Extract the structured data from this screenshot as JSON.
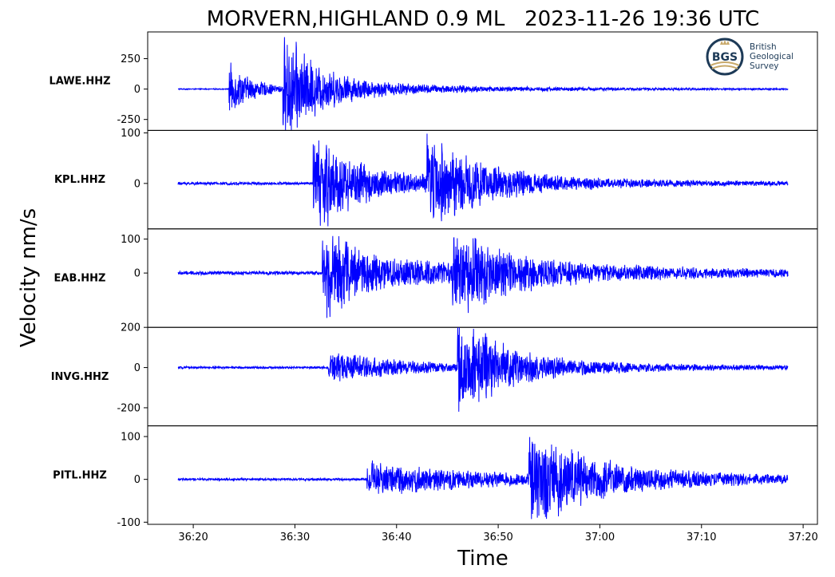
{
  "chart_data": {
    "type": "line",
    "title": "MORVERN,HIGHLAND 0.9 ML   2023-11-26 19:36 UTC",
    "xlabel": "Time",
    "ylabel": "Velocity nm/s",
    "line_color": "#0000ff",
    "x_start": "36:18.5",
    "x_end": "37:18.5",
    "xticks": [
      "36:20",
      "36:30",
      "36:40",
      "36:50",
      "37:00",
      "37:10",
      "37:20"
    ],
    "panels": [
      {
        "station": "LAWE.HHZ",
        "ylim": [
          -340,
          470
        ],
        "yticks": [
          250,
          0,
          -250
        ],
        "ytick_labels": [
          "250",
          "0",
          "-250"
        ],
        "noise": 5,
        "events": [
          {
            "t": 5.0,
            "amp": 230,
            "decay": 2.5
          },
          {
            "t": 10.3,
            "amp": 460,
            "decay": 3.0
          },
          {
            "t": 11.0,
            "amp": 90,
            "decay": 14.0
          }
        ]
      },
      {
        "station": "KPL.HHZ",
        "ylim": [
          -90,
          105
        ],
        "yticks": [
          100,
          0
        ],
        "ytick_labels": [
          "100",
          "0"
        ],
        "noise": 3,
        "events": [
          {
            "t": 13.3,
            "amp": 100,
            "decay": 3.0
          },
          {
            "t": 13.6,
            "amp": 30,
            "decay": 14.0
          },
          {
            "t": 24.5,
            "amp": 90,
            "decay": 3.5
          },
          {
            "t": 25.0,
            "amp": 25,
            "decay": 10.0
          }
        ]
      },
      {
        "station": "EAB.HHZ",
        "ylim": [
          -160,
          130
        ],
        "yticks": [
          100,
          0
        ],
        "ytick_labels": [
          "100",
          "0"
        ],
        "noise": 6,
        "events": [
          {
            "t": 14.2,
            "amp": 125,
            "decay": 3.0
          },
          {
            "t": 14.6,
            "amp": 50,
            "decay": 18.0
          },
          {
            "t": 27.0,
            "amp": 100,
            "decay": 4.0
          },
          {
            "t": 28.5,
            "amp": 30,
            "decay": 14.0
          }
        ]
      },
      {
        "station": "INVG.HHZ",
        "ylim": [
          -290,
          200
        ],
        "yticks": [
          200,
          0,
          -200
        ],
        "ytick_labels": [
          "200",
          "0",
          "-200"
        ],
        "noise": 6,
        "events": [
          {
            "t": 14.8,
            "amp": 75,
            "decay": 5.0
          },
          {
            "t": 15.2,
            "amp": 25,
            "decay": 16.0
          },
          {
            "t": 27.5,
            "amp": 250,
            "decay": 3.5
          },
          {
            "t": 29.0,
            "amp": 50,
            "decay": 14.0
          }
        ]
      },
      {
        "station": "PITL.HHZ",
        "ylim": [
          -105,
          125
        ],
        "yticks": [
          100,
          0,
          -100
        ],
        "ytick_labels": [
          "100",
          "0",
          "-100"
        ],
        "noise": 3,
        "events": [
          {
            "t": 18.6,
            "amp": 32,
            "decay": 8.0
          },
          {
            "t": 19.0,
            "amp": 15,
            "decay": 30.0
          },
          {
            "t": 34.5,
            "amp": 115,
            "decay": 4.0
          },
          {
            "t": 36.0,
            "amp": 30,
            "decay": 14.0
          }
        ]
      }
    ]
  },
  "logo": {
    "initials": "BGS",
    "line1": "British",
    "line2": "Geological",
    "line3": "Survey",
    "ring_color": "#1d3a57",
    "accent_color": "#c8a96a"
  }
}
